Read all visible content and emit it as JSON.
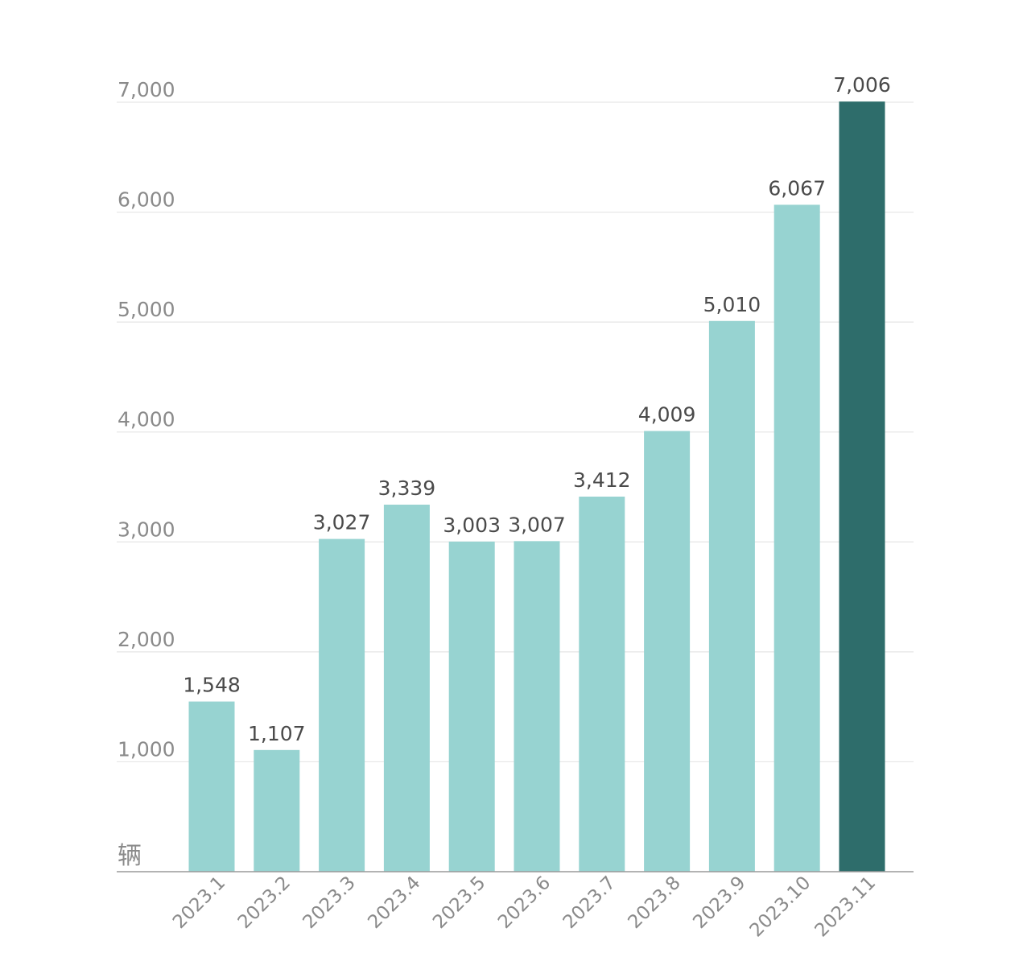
{
  "chart_data": {
    "type": "bar",
    "unit_label": "辆",
    "categories": [
      "2023.1",
      "2023.2",
      "2023.3",
      "2023.4",
      "2023.5",
      "2023.6",
      "2023.7",
      "2023.8",
      "2023.9",
      "2023.10",
      "2023.11"
    ],
    "values": [
      1548,
      1107,
      3027,
      3339,
      3003,
      3007,
      3412,
      4009,
      5010,
      6067,
      7006
    ],
    "value_labels": [
      "1,548",
      "1,107",
      "3,027",
      "3,339",
      "3,003",
      "3,007",
      "3,412",
      "4,009",
      "5,010",
      "6,067",
      "7,006"
    ],
    "ylim": [
      0,
      7000
    ],
    "yticks": [
      1000,
      2000,
      3000,
      4000,
      5000,
      6000,
      7000
    ],
    "ytick_labels": [
      "1,000",
      "2,000",
      "3,000",
      "4,000",
      "5,000",
      "6,000",
      "7,000"
    ],
    "highlight_index": 10,
    "grid": true,
    "colors": {
      "bar": "#97d3d1",
      "highlight": "#2e6d6b",
      "gridline": "#e6e6e6",
      "baseline": "#9a9a9a"
    }
  }
}
